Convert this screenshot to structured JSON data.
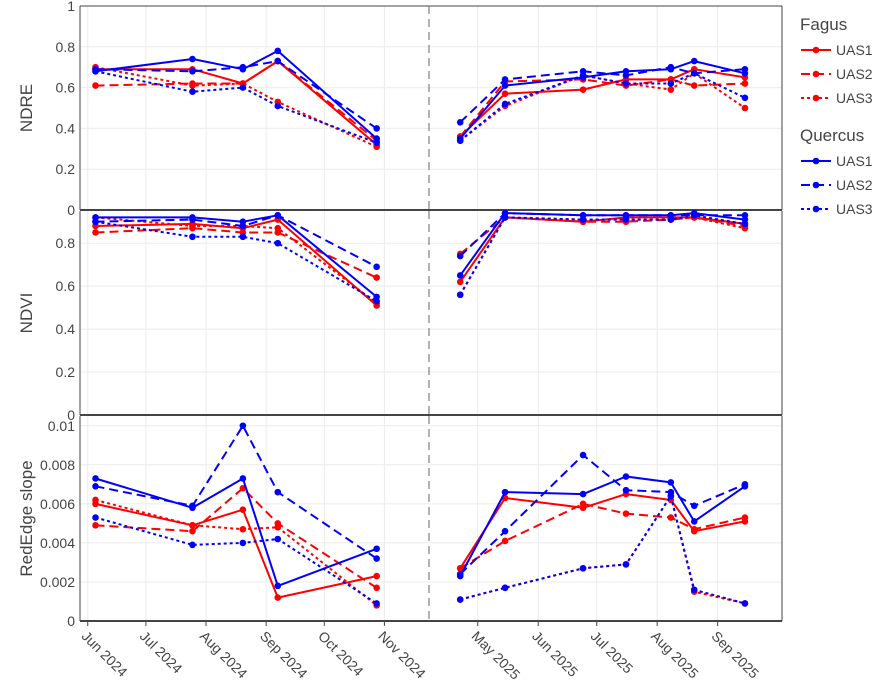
{
  "chart_data": {
    "type": "line",
    "x_ticks": [
      "Jun 2024",
      "Jul 2024",
      "Aug 2024",
      "Sep 2024",
      "Oct 2024",
      "Nov 2024",
      "May 2025",
      "Jun 2025",
      "Jul 2025",
      "Aug 2025",
      "Sep 2025"
    ],
    "break_between": [
      "Nov 2024",
      "May 2025"
    ],
    "grid": true,
    "legend": {
      "placement": "right",
      "groups": [
        {
          "title": "Fagus",
          "color": "#ff0000",
          "items": [
            {
              "label": "UAS1",
              "dash": "solid"
            },
            {
              "label": "UAS2",
              "dash": "dash"
            },
            {
              "label": "UAS3",
              "dash": "dot"
            }
          ]
        },
        {
          "title": "Quercus",
          "color": "#0000ff",
          "items": [
            {
              "label": "UAS1",
              "dash": "solid"
            },
            {
              "label": "UAS2",
              "dash": "dash"
            },
            {
              "label": "UAS3",
              "dash": "dot"
            }
          ]
        }
      ]
    },
    "segment_dates": [
      [
        "2024-06-05",
        "2024-07-25",
        "2024-08-20",
        "2024-09-07",
        "2024-10-28"
      ],
      [
        "2025-04-22",
        "2025-05-15",
        "2025-06-24",
        "2025-07-16",
        "2025-08-08",
        "2025-08-20",
        "2025-09-15"
      ]
    ],
    "panels": [
      {
        "ylabel": "NDRE",
        "ylim": [
          0,
          1
        ],
        "y_ticks": [
          "0",
          "0.2",
          "0.4",
          "0.6",
          "0.8",
          "1"
        ],
        "y_tick_values": [
          0,
          0.2,
          0.4,
          0.6,
          0.8,
          1
        ],
        "series": [
          {
            "species": "Fagus",
            "name": "UAS1",
            "values": [
              [
                0.69,
                0.69,
                0.62,
                0.73,
                0.32
              ],
              [
                0.36,
                0.57,
                0.59,
                0.64,
                0.64,
                0.69,
                0.65
              ]
            ]
          },
          {
            "species": "Fagus",
            "name": "UAS2",
            "values": [
              [
                0.61,
                0.62,
                0.62,
                0.73,
                0.34
              ],
              [
                0.36,
                0.63,
                0.64,
                0.61,
                0.64,
                0.61,
                0.62
              ]
            ]
          },
          {
            "species": "Fagus",
            "name": "UAS3",
            "values": [
              [
                0.7,
                0.61,
                0.62,
                0.53,
                0.31
              ],
              [
                0.34,
                0.51,
                0.66,
                0.62,
                0.59,
                0.67,
                0.5
              ]
            ]
          },
          {
            "species": "Quercus",
            "name": "UAS1",
            "values": [
              [
                0.68,
                0.74,
                0.69,
                0.78,
                0.35
              ],
              [
                0.35,
                0.61,
                0.65,
                0.68,
                0.69,
                0.73,
                0.67
              ]
            ]
          },
          {
            "species": "Quercus",
            "name": "UAS2",
            "values": [
              [
                0.69,
                0.68,
                0.7,
                0.73,
                0.4
              ],
              [
                0.43,
                0.64,
                0.68,
                0.66,
                0.7,
                0.67,
                0.69
              ]
            ]
          },
          {
            "species": "Quercus",
            "name": "UAS3",
            "values": [
              [
                0.68,
                0.58,
                0.6,
                0.51,
                0.33
              ],
              [
                0.34,
                0.52,
                0.66,
                0.62,
                0.62,
                0.67,
                0.55
              ]
            ]
          }
        ]
      },
      {
        "ylabel": "NDVI",
        "ylim": [
          0,
          0.95
        ],
        "y_ticks": [
          "0",
          "0.2",
          "0.4",
          "0.6",
          "0.8"
        ],
        "y_tick_values": [
          0,
          0.2,
          0.4,
          0.6,
          0.8
        ],
        "series": [
          {
            "species": "Fagus",
            "name": "UAS1",
            "values": [
              [
                0.88,
                0.89,
                0.87,
                0.91,
                0.51
              ],
              [
                0.62,
                0.92,
                0.9,
                0.92,
                0.92,
                0.92,
                0.89
              ]
            ]
          },
          {
            "species": "Fagus",
            "name": "UAS2",
            "values": [
              [
                0.85,
                0.87,
                0.85,
                0.85,
                0.64
              ],
              [
                0.75,
                0.92,
                0.9,
                0.9,
                0.91,
                0.92,
                0.88
              ]
            ]
          },
          {
            "species": "Fagus",
            "name": "UAS3",
            "values": [
              [
                0.92,
                0.88,
                0.88,
                0.87,
                0.52
              ],
              [
                0.56,
                0.92,
                0.91,
                0.91,
                0.91,
                0.92,
                0.87
              ]
            ]
          },
          {
            "species": "Quercus",
            "name": "UAS1",
            "values": [
              [
                0.92,
                0.92,
                0.9,
                0.93,
                0.55
              ],
              [
                0.65,
                0.94,
                0.93,
                0.93,
                0.93,
                0.94,
                0.91
              ]
            ]
          },
          {
            "species": "Quercus",
            "name": "UAS2",
            "values": [
              [
                0.9,
                0.91,
                0.88,
                0.93,
                0.69
              ],
              [
                0.74,
                0.94,
                0.93,
                0.93,
                0.93,
                0.93,
                0.93
              ]
            ]
          },
          {
            "species": "Quercus",
            "name": "UAS3",
            "values": [
              [
                0.9,
                0.83,
                0.83,
                0.8,
                0.53
              ],
              [
                0.56,
                0.92,
                0.91,
                0.91,
                0.91,
                0.93,
                0.89
              ]
            ]
          }
        ]
      },
      {
        "ylabel": "RedEdge slope",
        "ylim": [
          0,
          0.0105
        ],
        "y_ticks": [
          "0",
          "0.002",
          "0.004",
          "0.006",
          "0.008",
          "0.01"
        ],
        "y_tick_values": [
          0,
          0.002,
          0.004,
          0.006,
          0.008,
          0.01
        ],
        "series": [
          {
            "species": "Fagus",
            "name": "UAS1",
            "values": [
              [
                0.006,
                0.0049,
                0.0057,
                0.0012,
                0.0023
              ],
              [
                0.0027,
                0.0063,
                0.0058,
                0.0065,
                0.0062,
                0.0046,
                0.0051
              ]
            ]
          },
          {
            "species": "Fagus",
            "name": "UAS2",
            "values": [
              [
                0.0049,
                0.0046,
                0.0068,
                0.005,
                0.0017
              ],
              [
                0.0027,
                0.0041,
                0.006,
                0.0055,
                0.0053,
                0.0047,
                0.0053
              ]
            ]
          },
          {
            "species": "Fagus",
            "name": "UAS3",
            "values": [
              [
                0.0062,
                0.0049,
                0.0047,
                0.0048,
                0.0008
              ],
              [
                0.0011,
                0.0017,
                0.0027,
                0.0029,
                0.0064,
                0.0015,
                0.0009
              ]
            ]
          },
          {
            "species": "Quercus",
            "name": "UAS1",
            "values": [
              [
                0.0073,
                0.0058,
                0.0073,
                0.0018,
                0.0037
              ],
              [
                0.0023,
                0.0066,
                0.0065,
                0.0074,
                0.0071,
                0.0051,
                0.0069
              ]
            ]
          },
          {
            "species": "Quercus",
            "name": "UAS2",
            "values": [
              [
                0.0069,
                0.0059,
                0.01,
                0.0066,
                0.0032
              ],
              [
                0.0024,
                0.0046,
                0.0085,
                0.0067,
                0.0066,
                0.0059,
                0.007
              ]
            ]
          },
          {
            "species": "Quercus",
            "name": "UAS3",
            "values": [
              [
                0.0053,
                0.0039,
                0.004,
                0.0042,
                0.0009
              ],
              [
                0.0011,
                0.0017,
                0.0027,
                0.0029,
                0.0064,
                0.0016,
                0.0009
              ]
            ]
          }
        ]
      }
    ]
  }
}
